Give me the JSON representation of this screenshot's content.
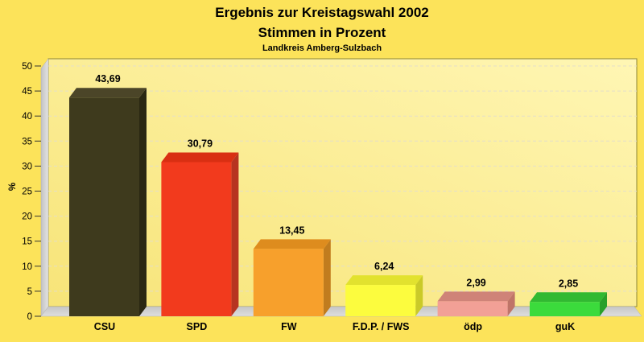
{
  "header": {
    "title": "Ergebnis zur Kreistagswahl 2002",
    "subtitle": "Stimmen in Prozent",
    "caption": "Landkreis Amberg-Sulzbach"
  },
  "chart_data": {
    "type": "bar",
    "style": "3d-bars",
    "title": "Ergebnis zur Kreistagswahl 2002",
    "subtitle": "Stimmen in Prozent",
    "caption": "Landkreis Amberg-Sulzbach",
    "xlabel": "",
    "ylabel": "%",
    "ylim": [
      0,
      50
    ],
    "ytick_step": 5,
    "yticks": [
      0,
      5,
      10,
      15,
      20,
      25,
      30,
      35,
      40,
      45,
      50
    ],
    "grid": "dashed horizontal",
    "legend_position": "none",
    "categories": [
      "CSU",
      "SPD",
      "FW",
      "F.D.P. / FWS",
      "ödp",
      "guK"
    ],
    "values": [
      43.69,
      30.79,
      13.45,
      6.24,
      2.99,
      2.85
    ],
    "value_labels": [
      "43,69",
      "30,79",
      "13,45",
      "6,24",
      "2,99",
      "2,85"
    ],
    "bar_colors": [
      {
        "front": "#3E3A1D",
        "top": "#4B4528",
        "side": "#2B2813"
      },
      {
        "front": "#F23A1D",
        "top": "#D92F12",
        "side": "#B73420"
      },
      {
        "front": "#F7A02C",
        "top": "#DE8C1E",
        "side": "#C17C1E"
      },
      {
        "front": "#FCFC3E",
        "top": "#E2E22E",
        "side": "#CACA28"
      },
      {
        "front": "#F2A096",
        "top": "#CF8378",
        "side": "#BF7468"
      },
      {
        "front": "#3BDB3C",
        "top": "#31B932",
        "side": "#29A02A"
      }
    ],
    "frame_colors": {
      "page_background": "#FCE35A",
      "plot_fill_start": "#F7E478",
      "plot_fill_end": "#FFF6B4",
      "plot_border": "#8C8638",
      "grid_line": "#E4DECA",
      "wall_dark": "#C2C2C2",
      "wall_light": "#E4E4E4",
      "floor_dark": "#C6C6C6",
      "floor_light": "#DEDEDE",
      "text": "#000000"
    }
  }
}
